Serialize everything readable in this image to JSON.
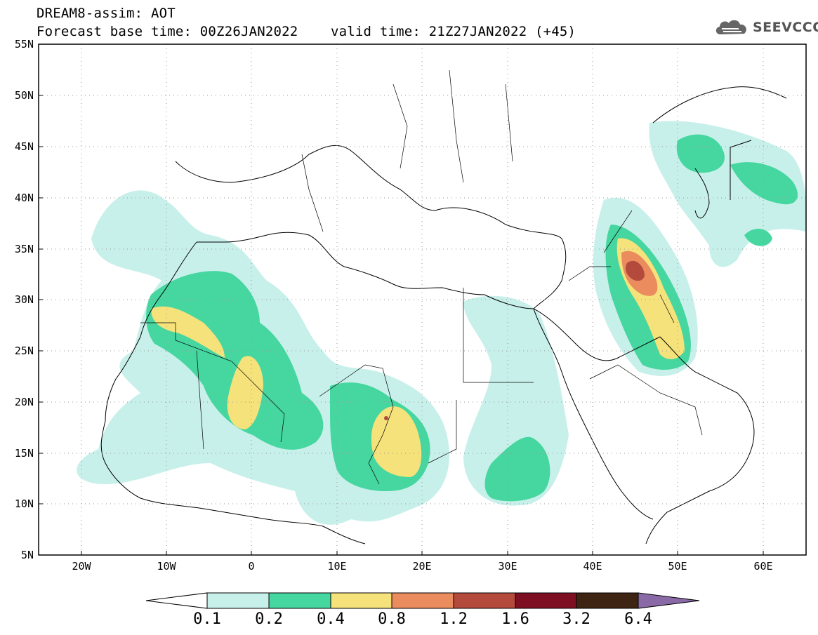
{
  "header": {
    "line1": "DREAM8-assim: AOT",
    "line2": "Forecast base time: 00Z26JAN2022    valid time: 21Z27JAN2022 (+45)",
    "logo_text": "SEEVCCC",
    "logo_icon": "cloud-icon"
  },
  "map": {
    "projection": "lat-lon",
    "lon_range": [
      -25,
      65
    ],
    "lat_range": [
      5,
      55
    ],
    "lat_labels": [
      "55N",
      "50N",
      "45N",
      "40N",
      "35N",
      "30N",
      "25N",
      "20N",
      "15N",
      "10N",
      "5N"
    ],
    "lon_labels": [
      "20W",
      "10W",
      "0",
      "10E",
      "20E",
      "30E",
      "40E",
      "50E",
      "60E"
    ],
    "gridlines": "dotted"
  },
  "colorbar": {
    "labels": [
      "0.1",
      "0.2",
      "0.4",
      "0.8",
      "1.2",
      "1.6",
      "3.2",
      "6.4"
    ],
    "colors": [
      "#ffffff",
      "#c8f0ea",
      "#46d6a0",
      "#f5e27a",
      "#ea8c5e",
      "#b34a3c",
      "#7e0f22",
      "#3e2413",
      "#8a6aa6"
    ]
  }
}
